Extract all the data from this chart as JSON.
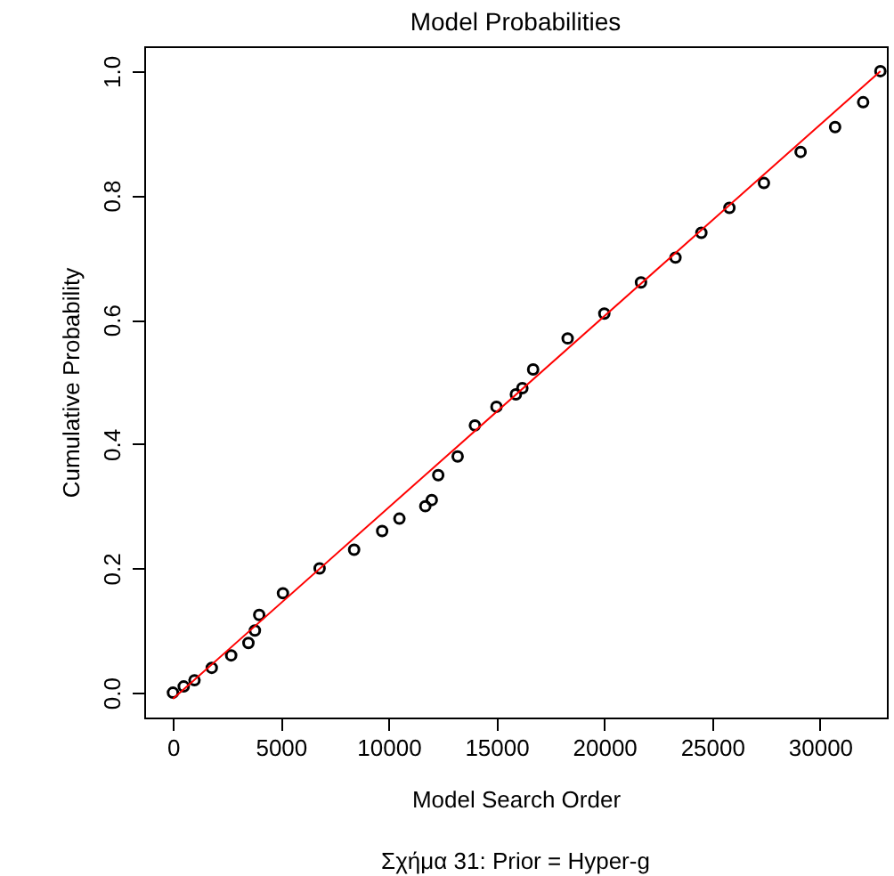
{
  "chart_data": {
    "type": "scatter",
    "title": "Model Probabilities",
    "xlabel": "Model Search Order",
    "ylabel": "Cumulative Probability",
    "annotations": [
      "Σχήμα 31: Prior = Hyper-g"
    ],
    "xlim": [
      -1330,
      33100
    ],
    "xticks": [
      0,
      5000,
      10000,
      15000,
      20000,
      25000,
      30000
    ],
    "ylim": [
      -0.04,
      1.04
    ],
    "yticks": [
      {
        "value": 0,
        "label": "0.0"
      },
      0.2,
      0.4,
      0.6,
      0.8,
      {
        "value": 1,
        "label": "1.0"
      }
    ],
    "grid": false,
    "marker": "circle",
    "series": [
      {
        "color": "#000000",
        "x": [
          0,
          500,
          1000,
          1800,
          2700,
          3500,
          3800,
          4000,
          5100,
          6800,
          8400,
          9700,
          10500,
          11700,
          12000,
          12300,
          13200,
          14000,
          15000,
          15900,
          16200,
          16700,
          18300,
          20000,
          21700,
          23300,
          24500,
          25800,
          27400,
          29100,
          30700,
          32000,
          32800
        ],
        "values": [
          0,
          0.01,
          0.02,
          0.04,
          0.06,
          0.08,
          0.1,
          0.125,
          0.16,
          0.2,
          0.23,
          0.26,
          0.28,
          0.3,
          0.31,
          0.35,
          0.38,
          0.43,
          0.46,
          0.48,
          0.49,
          0.52,
          0.57,
          0.61,
          0.66,
          0.7,
          0.74,
          0.78,
          0.82,
          0.87,
          0.91,
          0.95,
          1.0
        ]
      },
      {
        "type": "line",
        "marker": "none",
        "color": "#ff0000",
        "x": [
          0,
          32800
        ],
        "values": [
          -0.01,
          1.0
        ]
      }
    ]
  }
}
